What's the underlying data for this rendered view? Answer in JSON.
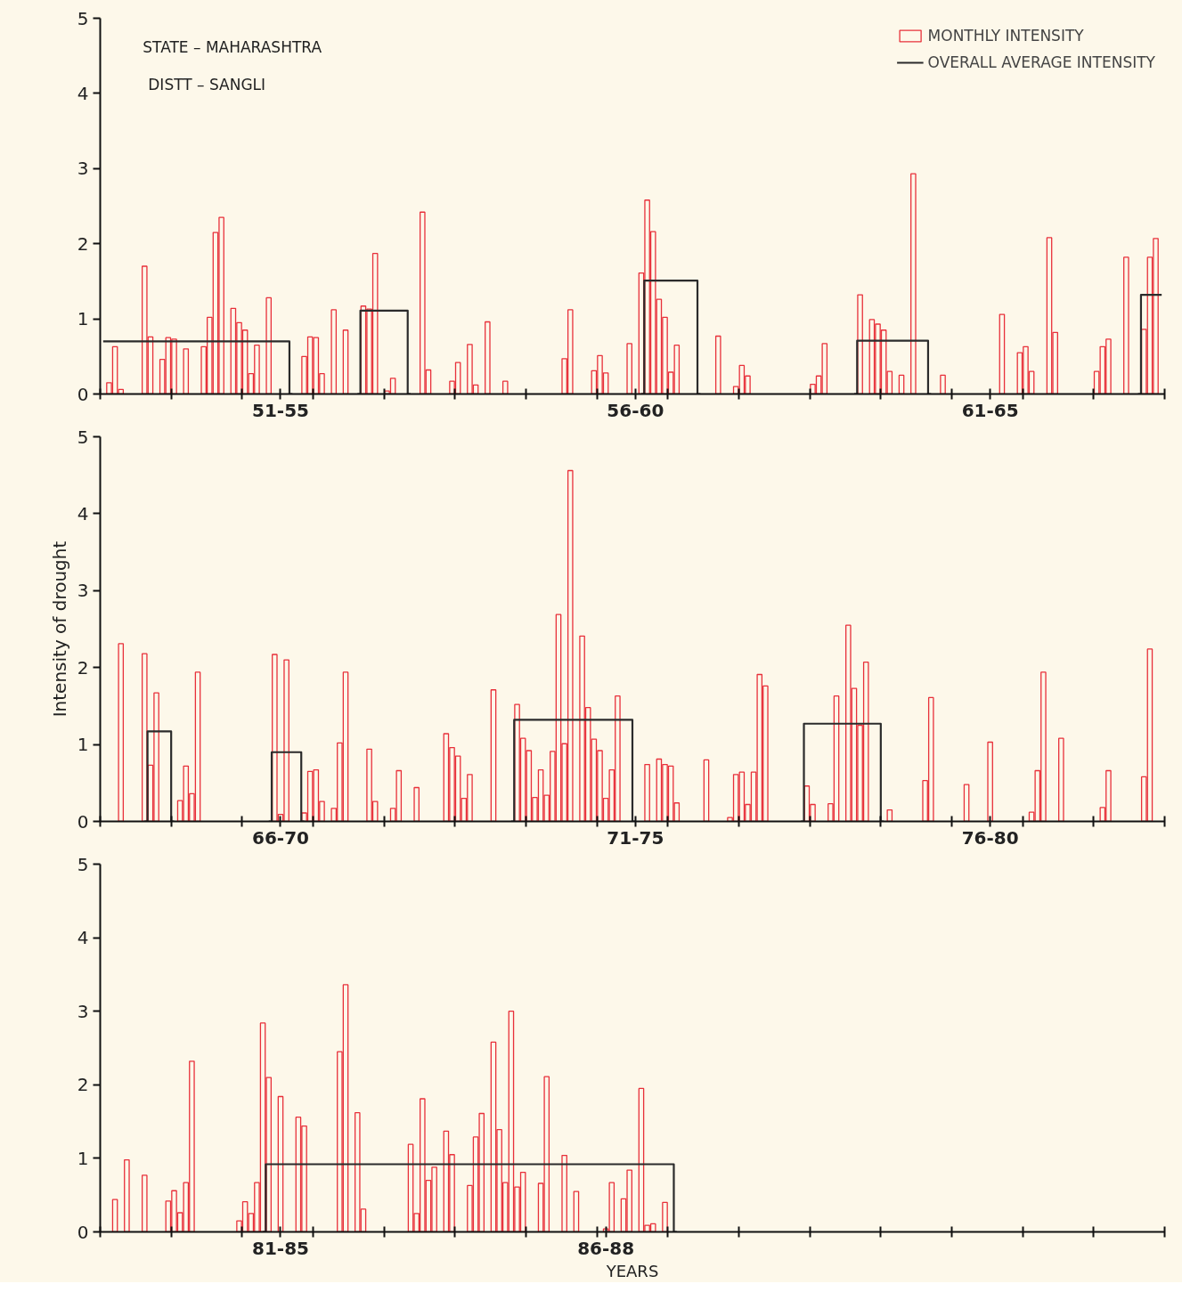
{
  "chart_data": [
    {
      "type": "bar",
      "annotations": [
        "STATE – MAHARASHTRA",
        "DISTT – SANGLI"
      ],
      "legend": "top right",
      "ylim": [
        0,
        5
      ],
      "yticks": [
        0,
        1,
        2,
        3,
        4,
        5
      ],
      "categories": [
        null,
        null,
        null,
        null,
        null,
        null,
        null,
        null,
        null,
        null,
        null,
        null,
        null,
        null,
        null,
        null,
        null,
        null,
        null,
        null,
        null,
        null,
        null,
        null,
        null,
        null,
        null,
        null,
        null,
        null,
        "51-55",
        null,
        null,
        null,
        null,
        null,
        null,
        null,
        null,
        null,
        null,
        null,
        null,
        null,
        null,
        null,
        null,
        null,
        null,
        null,
        null,
        null,
        null,
        null,
        null,
        null,
        null,
        null,
        null,
        null,
        null,
        null,
        null,
        null,
        null,
        null,
        null,
        null,
        null,
        null,
        null,
        null,
        null,
        null,
        null,
        null,
        null,
        null,
        null,
        null,
        null,
        null,
        null,
        null,
        null,
        null,
        null,
        null,
        null,
        null,
        "56-60",
        null,
        null,
        null,
        null,
        null,
        null,
        null,
        null,
        null,
        null,
        null,
        null,
        null,
        null,
        null,
        null,
        null,
        null,
        null,
        null,
        null,
        null,
        null,
        null,
        null,
        null,
        null,
        null,
        null,
        null,
        null,
        null,
        null,
        null,
        null,
        null,
        null,
        null,
        null,
        null,
        null,
        null,
        null,
        null,
        null,
        null,
        null,
        null,
        null,
        null,
        null,
        null,
        null,
        null,
        null,
        null,
        null,
        null,
        null,
        "61-65",
        null,
        null,
        null,
        null,
        null,
        null,
        null,
        null,
        null,
        null,
        null,
        null,
        null,
        null,
        null,
        null,
        null,
        null,
        null,
        null,
        null,
        null,
        null,
        null,
        null,
        null,
        null,
        null,
        null
      ],
      "series": [
        {
          "name": "MONTHLY INTENSITY",
          "color": "#e8303a",
          "values": [
            null,
            0.15,
            0.63,
            0.06,
            null,
            null,
            null,
            1.7,
            0.76,
            null,
            0.46,
            0.75,
            0.73,
            null,
            0.6,
            null,
            null,
            0.63,
            1.02,
            2.15,
            2.35,
            null,
            1.14,
            0.95,
            0.85,
            0.27,
            0.65,
            null,
            1.28,
            null,
            null,
            null,
            null,
            null,
            0.5,
            0.76,
            0.75,
            0.27,
            null,
            1.12,
            null,
            0.85,
            null,
            null,
            1.17,
            1.13,
            1.87,
            null,
            0.04,
            0.21,
            null,
            null,
            null,
            null,
            2.42,
            0.32,
            null,
            null,
            null,
            0.17,
            0.42,
            null,
            0.66,
            0.12,
            null,
            0.96,
            null,
            null,
            0.17,
            null,
            null,
            null,
            null,
            null,
            null,
            null,
            null,
            null,
            0.47,
            1.12,
            null,
            null,
            null,
            0.31,
            0.51,
            0.28,
            null,
            null,
            null,
            0.67,
            null,
            1.61,
            2.58,
            2.16,
            1.26,
            1.02,
            0.29,
            0.65,
            null,
            null,
            null,
            null,
            null,
            null,
            0.77,
            null,
            null,
            0.1,
            0.38,
            0.24,
            null,
            null,
            null,
            null,
            null,
            null,
            null,
            null,
            null,
            null,
            0.13,
            0.24,
            0.67,
            null,
            null,
            null,
            null,
            null,
            1.32,
            null,
            0.99,
            0.93,
            0.85,
            0.3,
            null,
            0.25,
            null,
            2.93,
            null,
            null,
            null,
            null,
            0.25,
            null,
            null,
            null,
            null,
            null,
            null,
            null,
            null,
            null,
            1.06,
            null,
            null,
            0.55,
            0.63,
            0.3,
            null,
            null,
            2.08,
            0.82,
            null,
            null,
            null,
            null,
            null,
            null,
            0.3,
            0.63,
            0.73,
            null,
            null,
            1.82,
            null,
            null,
            0.86,
            1.82,
            2.07,
            null
          ]
        },
        {
          "name": "OVERALL AVERAGE INTENSITY",
          "type": "step",
          "color": "#2b2b2b",
          "values": [
            0.7,
            0.7,
            0.7,
            0.7,
            0.7,
            0.7,
            0.7,
            0.7,
            0.7,
            0.7,
            0.7,
            0.7,
            0.7,
            0.7,
            0.7,
            0.7,
            0.7,
            0.7,
            0.7,
            0.7,
            0.7,
            0.7,
            0.7,
            0.7,
            0.7,
            0.7,
            0.7,
            0.7,
            0.7,
            0.7,
            0.7,
            0.7,
            0,
            null,
            null,
            null,
            null,
            null,
            null,
            null,
            null,
            null,
            null,
            0,
            1.11,
            1.11,
            1.11,
            1.11,
            1.11,
            1.11,
            1.11,
            1.11,
            0,
            null,
            null,
            null,
            null,
            null,
            null,
            null,
            null,
            null,
            null,
            null,
            null,
            null,
            null,
            null,
            null,
            null,
            null,
            null,
            null,
            null,
            null,
            null,
            null,
            null,
            null,
            null,
            null,
            null,
            null,
            null,
            null,
            null,
            null,
            null,
            null,
            null,
            null,
            0,
            1.51,
            1.51,
            1.51,
            1.51,
            1.51,
            1.51,
            1.51,
            1.51,
            1.51,
            0,
            null,
            null,
            null,
            null,
            null,
            null,
            null,
            null,
            null,
            null,
            null,
            null,
            null,
            null,
            null,
            null,
            null,
            null,
            null,
            null,
            null,
            null,
            null,
            null,
            null,
            0,
            0.71,
            0.71,
            0.71,
            0.71,
            0.71,
            0.71,
            0.71,
            0.71,
            0.71,
            0.71,
            0.71,
            0.71,
            0,
            null,
            null,
            null,
            null,
            null,
            null,
            null,
            null,
            null,
            null,
            null,
            null,
            null,
            null,
            null,
            null,
            null,
            null,
            null,
            null,
            null,
            null,
            null,
            null,
            null,
            null,
            null,
            null,
            null,
            null,
            null,
            null,
            null,
            null,
            0,
            1.32,
            1.32,
            1.32,
            1.32
          ]
        }
      ]
    },
    {
      "type": "bar",
      "ylabel": "Intensity of drought",
      "ylim": [
        0,
        5
      ],
      "yticks": [
        0,
        1,
        2,
        3,
        4,
        5
      ],
      "categories": [
        null,
        null,
        null,
        null,
        null,
        null,
        null,
        null,
        null,
        null,
        null,
        null,
        null,
        null,
        null,
        null,
        null,
        null,
        null,
        null,
        null,
        null,
        null,
        null,
        null,
        null,
        null,
        null,
        null,
        null,
        "66-70",
        null,
        null,
        null,
        null,
        null,
        null,
        null,
        null,
        null,
        null,
        null,
        null,
        null,
        null,
        null,
        null,
        null,
        null,
        null,
        null,
        null,
        null,
        null,
        null,
        null,
        null,
        null,
        null,
        null,
        null,
        null,
        null,
        null,
        null,
        null,
        null,
        null,
        null,
        null,
        null,
        null,
        null,
        null,
        null,
        null,
        null,
        null,
        null,
        null,
        null,
        null,
        null,
        null,
        null,
        null,
        null,
        null,
        null,
        null,
        "71-75",
        null,
        null,
        null,
        null,
        null,
        null,
        null,
        null,
        null,
        null,
        null,
        null,
        null,
        null,
        null,
        null,
        null,
        null,
        null,
        null,
        null,
        null,
        null,
        null,
        null,
        null,
        null,
        null,
        null,
        null,
        null,
        null,
        null,
        null,
        null,
        null,
        null,
        null,
        null,
        null,
        null,
        null,
        null,
        null,
        null,
        null,
        null,
        null,
        null,
        null,
        null,
        null,
        null,
        null,
        null,
        null,
        null,
        null,
        null,
        "76-80",
        null,
        null,
        null,
        null,
        null,
        null,
        null,
        null,
        null,
        null,
        null,
        null,
        null,
        null,
        null,
        null,
        null,
        null,
        null,
        null,
        null,
        null,
        null,
        null,
        null,
        null,
        null,
        null,
        null
      ],
      "series": [
        {
          "color": "#e8303a",
          "values": [
            null,
            null,
            null,
            2.31,
            null,
            null,
            null,
            2.18,
            0.73,
            1.67,
            null,
            null,
            null,
            0.27,
            0.72,
            0.36,
            1.94,
            null,
            null,
            null,
            null,
            null,
            null,
            null,
            null,
            null,
            null,
            null,
            null,
            2.17,
            0.09,
            2.1,
            null,
            null,
            0.11,
            0.65,
            0.67,
            0.26,
            null,
            0.17,
            1.02,
            1.94,
            null,
            null,
            null,
            0.94,
            0.26,
            null,
            null,
            0.17,
            0.66,
            null,
            null,
            0.44,
            null,
            null,
            null,
            null,
            1.14,
            0.96,
            0.85,
            0.3,
            0.61,
            null,
            null,
            null,
            1.71,
            null,
            null,
            null,
            1.52,
            1.08,
            0.92,
            0.31,
            0.67,
            0.34,
            0.91,
            2.69,
            1.01,
            4.56,
            null,
            2.41,
            1.48,
            1.07,
            0.92,
            0.3,
            0.67,
            1.63,
            null,
            null,
            null,
            null,
            0.74,
            null,
            0.81,
            0.74,
            0.72,
            0.24,
            null,
            null,
            null,
            null,
            0.8,
            null,
            null,
            null,
            0.05,
            0.61,
            0.64,
            0.22,
            0.64,
            1.91,
            1.76,
            null,
            null,
            null,
            null,
            null,
            null,
            0.46,
            0.22,
            null,
            null,
            0.23,
            1.63,
            null,
            2.55,
            1.73,
            1.25,
            2.07,
            null,
            null,
            null,
            0.15,
            null,
            null,
            null,
            null,
            null,
            0.53,
            1.61,
            null,
            null,
            null,
            null,
            null,
            0.48,
            null,
            null,
            null,
            1.03,
            null,
            null,
            null,
            null,
            null,
            null,
            0.12,
            0.66,
            1.94,
            null,
            null,
            1.08,
            null,
            null,
            null,
            null,
            null,
            null,
            0.18,
            0.66,
            null,
            null,
            null,
            null,
            null,
            0.58,
            2.24,
            null,
            null
          ]
        },
        {
          "type": "step",
          "color": "#2b2b2b",
          "values": [
            null,
            null,
            null,
            null,
            null,
            null,
            null,
            0,
            1.17,
            1.17,
            1.17,
            1.17,
            0,
            null,
            null,
            null,
            null,
            null,
            null,
            null,
            null,
            null,
            null,
            null,
            null,
            null,
            null,
            null,
            0,
            0.9,
            0.9,
            0.9,
            0.9,
            0.9,
            0,
            null,
            null,
            null,
            null,
            null,
            null,
            null,
            null,
            null,
            null,
            null,
            null,
            null,
            null,
            null,
            null,
            null,
            null,
            null,
            null,
            null,
            null,
            null,
            null,
            null,
            null,
            null,
            null,
            null,
            null,
            null,
            null,
            null,
            null,
            0,
            1.32,
            1.32,
            1.32,
            1.32,
            1.32,
            1.32,
            1.32,
            1.32,
            1.32,
            1.32,
            1.32,
            1.32,
            1.32,
            1.32,
            1.32,
            1.32,
            1.32,
            1.32,
            1.32,
            1.32,
            0,
            null,
            null,
            null,
            null,
            null,
            null,
            null,
            null,
            null,
            null,
            null,
            null,
            null,
            null,
            null,
            null,
            null,
            null,
            null,
            null,
            null,
            null,
            null,
            null,
            null,
            null,
            null,
            0,
            1.27,
            1.27,
            1.27,
            1.27,
            1.27,
            1.27,
            1.27,
            1.27,
            1.27,
            1.27,
            1.27,
            1.27,
            1.27,
            0,
            null,
            null,
            null,
            null,
            null,
            null,
            null,
            null,
            null,
            null,
            null,
            null,
            null,
            null,
            null,
            null,
            null,
            null,
            null,
            null,
            null,
            null,
            null,
            null,
            null,
            null,
            null,
            null,
            null,
            null,
            null,
            null,
            null,
            null,
            null,
            null,
            null,
            null,
            null,
            null,
            null,
            null,
            null,
            null,
            null,
            null,
            null
          ]
        }
      ]
    },
    {
      "type": "bar",
      "xlabel": "YEARS",
      "ylim": [
        0,
        5
      ],
      "yticks": [
        0,
        1,
        2,
        3,
        4,
        5
      ],
      "categories": [
        null,
        null,
        null,
        null,
        null,
        null,
        null,
        null,
        null,
        null,
        null,
        null,
        null,
        null,
        null,
        null,
        null,
        null,
        null,
        null,
        null,
        null,
        null,
        null,
        null,
        null,
        null,
        null,
        null,
        null,
        "81-85",
        null,
        null,
        null,
        null,
        null,
        null,
        null,
        null,
        null,
        null,
        null,
        null,
        null,
        null,
        null,
        null,
        null,
        null,
        null,
        null,
        null,
        null,
        null,
        null,
        null,
        null,
        null,
        null,
        null,
        null,
        null,
        null,
        null,
        null,
        null,
        null,
        null,
        null,
        null,
        null,
        null,
        null,
        null,
        null,
        null,
        null,
        null,
        null,
        null,
        null,
        null,
        null,
        null,
        null,
        "86-88",
        null,
        null,
        null,
        null,
        null,
        null,
        null,
        null,
        null,
        null,
        null,
        null,
        null,
        null,
        null,
        null,
        null,
        null,
        null,
        null,
        null,
        null,
        null,
        null,
        null,
        null,
        null,
        null,
        null,
        null,
        null,
        null,
        null,
        null,
        null,
        null,
        null,
        null,
        null,
        null,
        null,
        null,
        null,
        null,
        null,
        null,
        null,
        null,
        null,
        null,
        null,
        null,
        null,
        null,
        null,
        null,
        null,
        null,
        null,
        null,
        null,
        null,
        null,
        null,
        null,
        null,
        null,
        null,
        null,
        null,
        null,
        null,
        null,
        null,
        null,
        null,
        null,
        null,
        null,
        null,
        null,
        null,
        null,
        null,
        null,
        null,
        null,
        null,
        null,
        null,
        null,
        null,
        null,
        null
      ],
      "series": [
        {
          "color": "#e8303a",
          "values": [
            null,
            null,
            0.44,
            null,
            0.98,
            null,
            null,
            0.77,
            null,
            null,
            null,
            0.42,
            0.56,
            0.26,
            0.67,
            2.32,
            null,
            null,
            null,
            null,
            null,
            null,
            null,
            0.15,
            0.41,
            0.25,
            0.67,
            2.84,
            2.1,
            null,
            1.84,
            null,
            null,
            1.56,
            1.44,
            null,
            null,
            null,
            null,
            null,
            2.45,
            3.36,
            null,
            1.62,
            0.31,
            null,
            null,
            null,
            null,
            null,
            null,
            null,
            1.19,
            0.25,
            1.81,
            0.7,
            0.88,
            null,
            1.37,
            1.05,
            null,
            null,
            0.63,
            1.29,
            1.61,
            null,
            2.58,
            1.39,
            0.67,
            3.0,
            0.61,
            0.81,
            null,
            null,
            0.66,
            2.11,
            null,
            null,
            1.04,
            null,
            0.55,
            null,
            null,
            null,
            null,
            0.04,
            0.67,
            null,
            0.45,
            0.84,
            null,
            1.95,
            0.09,
            0.11,
            null,
            0.4,
            null,
            null,
            null,
            null,
            null,
            null,
            null,
            null,
            null,
            null,
            null,
            null,
            null,
            null,
            null,
            null,
            null,
            null,
            null,
            null,
            null,
            null,
            null,
            null,
            null,
            null,
            null,
            null,
            null,
            null,
            null,
            null,
            null,
            null,
            null,
            null,
            null,
            null,
            null,
            null,
            null,
            null,
            null,
            null,
            null,
            null,
            null,
            null,
            null,
            null,
            null,
            null,
            null,
            null,
            null,
            null,
            null,
            null,
            null,
            null,
            null,
            null,
            null,
            null,
            null,
            null,
            null,
            null,
            null,
            null,
            null,
            null,
            null,
            null,
            null,
            null,
            null,
            null,
            null,
            null,
            null,
            null,
            null,
            null
          ]
        },
        {
          "type": "step",
          "color": "#2b2b2b",
          "values": [
            null,
            null,
            null,
            null,
            null,
            null,
            null,
            null,
            null,
            null,
            null,
            null,
            null,
            null,
            null,
            null,
            null,
            null,
            null,
            null,
            null,
            null,
            null,
            null,
            null,
            null,
            null,
            0,
            0.92,
            0.92,
            0.92,
            0.92,
            0.92,
            0.92,
            0.92,
            0.92,
            0.92,
            0.92,
            0.92,
            0.92,
            0.92,
            0.92,
            0.92,
            0.92,
            0.92,
            0.92,
            0.92,
            0.92,
            0.92,
            0.92,
            0.92,
            0.92,
            0.92,
            0.92,
            0.92,
            0.92,
            0.92,
            0.92,
            0.92,
            0.92,
            0.92,
            0.92,
            0.92,
            0.92,
            0.92,
            0.92,
            0.92,
            0.92,
            0.92,
            0.92,
            0.92,
            0.92,
            0.92,
            0.92,
            0.92,
            0.92,
            0.92,
            0.92,
            0.92,
            0.92,
            0.92,
            0.92,
            0.92,
            0.92,
            0.92,
            0.92,
            0.92,
            0.92,
            0.92,
            0.92,
            0.92,
            0.92,
            0.92,
            0.92,
            0.92,
            0.92,
            0.92,
            0,
            null,
            null,
            null,
            null,
            null,
            null,
            null,
            null,
            null,
            null,
            null,
            null,
            null,
            null,
            null,
            null,
            null,
            null,
            null,
            null,
            null,
            null,
            null,
            null,
            null,
            null,
            null,
            null,
            null,
            null,
            null,
            null,
            null,
            null,
            null,
            null,
            null,
            null,
            null,
            null,
            null,
            null,
            null,
            null,
            null,
            null,
            null,
            null,
            null,
            null,
            null,
            null,
            null,
            null,
            null,
            null,
            null,
            null,
            null,
            null,
            null,
            null,
            null,
            null,
            null,
            null,
            null,
            null,
            null,
            null,
            null,
            null,
            null,
            null,
            null,
            null,
            null,
            null,
            null,
            null,
            null,
            null
          ]
        }
      ]
    }
  ]
}
